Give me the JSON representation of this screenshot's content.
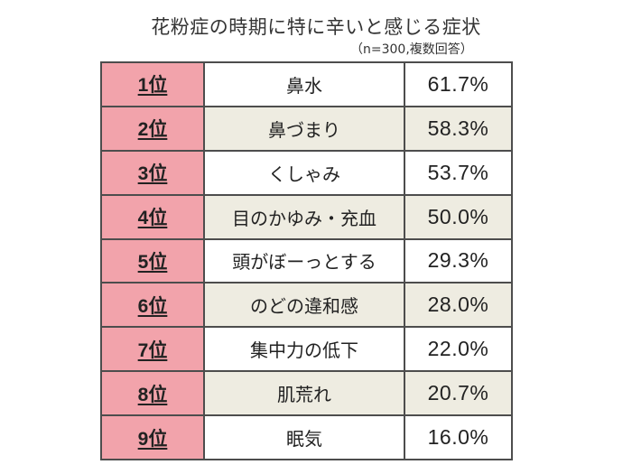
{
  "title": "花粉症の時期に特に辛いと感じる症状",
  "note": "（n=300,複数回答）",
  "colors": {
    "rank_fill": "#f2a3ab",
    "alt_row_fill": "#eeece1",
    "border": "#4d4d4d"
  },
  "chart_data": {
    "type": "table",
    "title": "花粉症の時期に特に辛いと感じる症状",
    "note": "（n=300,複数回答）",
    "rows": [
      {
        "rank": "1位",
        "symptom": "鼻水",
        "percent": "61.7%",
        "value": 61.7
      },
      {
        "rank": "2位",
        "symptom": "鼻づまり",
        "percent": "58.3%",
        "value": 58.3
      },
      {
        "rank": "3位",
        "symptom": "くしゃみ",
        "percent": "53.7%",
        "value": 53.7
      },
      {
        "rank": "4位",
        "symptom": "目のかゆみ・充血",
        "percent": "50.0%",
        "value": 50.0
      },
      {
        "rank": "5位",
        "symptom": "頭がぼーっとする",
        "percent": "29.3%",
        "value": 29.3
      },
      {
        "rank": "6位",
        "symptom": "のどの違和感",
        "percent": "28.0%",
        "value": 28.0
      },
      {
        "rank": "7位",
        "symptom": "集中力の低下",
        "percent": "22.0%",
        "value": 22.0
      },
      {
        "rank": "8位",
        "symptom": "肌荒れ",
        "percent": "20.7%",
        "value": 20.7
      },
      {
        "rank": "9位",
        "symptom": "眠気",
        "percent": "16.0%",
        "value": 16.0
      }
    ]
  }
}
